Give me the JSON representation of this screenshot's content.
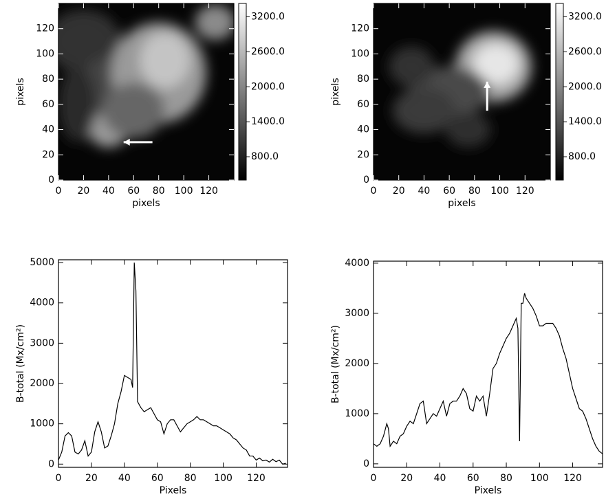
{
  "chart_data": [
    {
      "type": "image",
      "xlabel": "pixels",
      "ylabel": "pixels",
      "xlim": [
        0,
        140
      ],
      "ylim": [
        0,
        140
      ],
      "xticks": [
        0,
        20,
        40,
        60,
        80,
        100,
        120
      ],
      "yticks": [
        0,
        20,
        40,
        60,
        80,
        100,
        120
      ],
      "colorbar": {
        "lim": [
          400,
          3430
        ],
        "ticks": [
          {
            "value": 800,
            "label": "800.0"
          },
          {
            "value": 1400,
            "label": "1400.0"
          },
          {
            "value": 2000,
            "label": "2000.0"
          },
          {
            "value": 2600,
            "label": "2600.0"
          },
          {
            "value": 3200,
            "label": "3200.0"
          }
        ]
      }
    },
    {
      "type": "image",
      "xlabel": "pixels",
      "ylabel": "pixels",
      "xlim": [
        0,
        140
      ],
      "ylim": [
        0,
        140
      ],
      "xticks": [
        0,
        20,
        40,
        60,
        80,
        100,
        120
      ],
      "yticks": [
        0,
        20,
        40,
        60,
        80,
        100,
        120
      ],
      "colorbar": {
        "lim": [
          400,
          3430
        ],
        "ticks": [
          {
            "value": 800,
            "label": "800.0"
          },
          {
            "value": 1400,
            "label": "1400.0"
          },
          {
            "value": 2000,
            "label": "2000.0"
          },
          {
            "value": 2600,
            "label": "2600.0"
          },
          {
            "value": 3200,
            "label": "3200.0"
          }
        ]
      }
    },
    {
      "type": "line",
      "xlabel": "Pixels",
      "ylabel": "B-total (Mx/cm²)",
      "color": "#000000",
      "xlim": [
        0,
        139
      ],
      "ylim": [
        -80,
        5070
      ],
      "xticks": [
        0,
        20,
        40,
        60,
        80,
        100,
        120
      ],
      "yticks": [
        0,
        1000,
        2000,
        3000,
        4000,
        5000
      ],
      "x": [
        0,
        2,
        4,
        6,
        8,
        10,
        12,
        14,
        16,
        18,
        20,
        22,
        24,
        26,
        28,
        30,
        32,
        34,
        36,
        38,
        40,
        42,
        44,
        45,
        46,
        47,
        48,
        50,
        52,
        54,
        56,
        58,
        60,
        62,
        64,
        66,
        68,
        70,
        72,
        74,
        76,
        78,
        80,
        82,
        84,
        86,
        88,
        90,
        92,
        94,
        96,
        98,
        100,
        102,
        104,
        106,
        108,
        110,
        112,
        114,
        116,
        118,
        120,
        122,
        124,
        126,
        128,
        130,
        132,
        134,
        136,
        138
      ],
      "values": [
        100,
        300,
        700,
        780,
        700,
        300,
        250,
        350,
        580,
        200,
        300,
        800,
        1050,
        800,
        400,
        450,
        700,
        1000,
        1500,
        1800,
        2200,
        2150,
        2100,
        1900,
        5000,
        4300,
        1550,
        1400,
        1300,
        1350,
        1400,
        1250,
        1100,
        1050,
        750,
        1000,
        1100,
        1100,
        950,
        800,
        900,
        1000,
        1050,
        1100,
        1180,
        1100,
        1100,
        1050,
        1000,
        950,
        950,
        900,
        850,
        800,
        750,
        650,
        600,
        500,
        400,
        350,
        200,
        200,
        100,
        150,
        80,
        100,
        50,
        120,
        60,
        100,
        0,
        20
      ]
    },
    {
      "type": "line",
      "xlabel": "Pixels",
      "ylabel": "B-total (Mx/cm²)",
      "color": "#000000",
      "xlim": [
        0,
        138
      ],
      "ylim": [
        -70,
        4040
      ],
      "xticks": [
        0,
        20,
        40,
        60,
        80,
        100,
        120
      ],
      "yticks": [
        0,
        1000,
        2000,
        3000,
        4000
      ],
      "x": [
        0,
        2,
        4,
        6,
        8,
        9,
        10,
        12,
        14,
        16,
        18,
        20,
        22,
        24,
        26,
        28,
        30,
        32,
        34,
        36,
        38,
        40,
        42,
        44,
        46,
        48,
        50,
        52,
        54,
        56,
        58,
        60,
        62,
        64,
        66,
        68,
        70,
        72,
        74,
        76,
        78,
        80,
        82,
        84,
        86,
        87,
        88,
        89,
        90,
        91,
        92,
        94,
        96,
        98,
        100,
        102,
        104,
        106,
        108,
        110,
        112,
        114,
        116,
        118,
        120,
        122,
        124,
        126,
        128,
        130,
        132,
        134,
        136,
        138
      ],
      "values": [
        400,
        350,
        400,
        550,
        800,
        700,
        350,
        450,
        400,
        550,
        600,
        750,
        850,
        800,
        1000,
        1200,
        1250,
        800,
        900,
        1000,
        950,
        1100,
        1250,
        950,
        1200,
        1250,
        1250,
        1350,
        1500,
        1400,
        1100,
        1050,
        1350,
        1250,
        1350,
        950,
        1400,
        1900,
        2000,
        2200,
        2350,
        2500,
        2600,
        2750,
        2900,
        2700,
        450,
        3200,
        3200,
        3400,
        3300,
        3200,
        3100,
        2950,
        2750,
        2750,
        2800,
        2800,
        2800,
        2700,
        2550,
        2300,
        2100,
        1800,
        1500,
        1300,
        1100,
        1050,
        900,
        700,
        500,
        350,
        250,
        200
      ]
    }
  ]
}
